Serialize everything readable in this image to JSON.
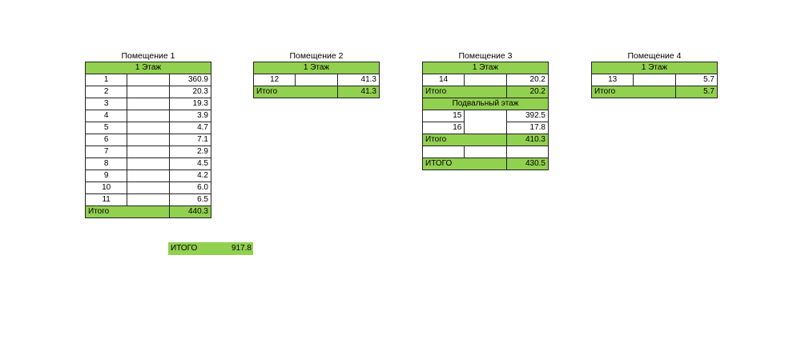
{
  "rooms": [
    {
      "title": "Помещение 1",
      "floor": "1 Этаж",
      "rows": [
        [
          "1",
          "360.9"
        ],
        [
          "2",
          "20.3"
        ],
        [
          "3",
          "19.3"
        ],
        [
          "4",
          "3.9"
        ],
        [
          "5",
          "4.7"
        ],
        [
          "6",
          "7.1"
        ],
        [
          "7",
          "2.9"
        ],
        [
          "8",
          "4.5"
        ],
        [
          "9",
          "4.2"
        ],
        [
          "10",
          "6.0"
        ],
        [
          "11",
          "6.5"
        ]
      ],
      "total_label": "Итого",
      "total": "440.3"
    },
    {
      "title": "Помещение 2",
      "floor": "1 Этаж",
      "rows": [
        [
          "12",
          "41.3"
        ]
      ],
      "total_label": "Итого",
      "total": "41.3"
    },
    {
      "title": "Помещение 3",
      "floor": "1 Этаж",
      "rows": [
        [
          "14",
          "20.2"
        ]
      ],
      "total_label": "Итого",
      "total": "20.2",
      "basement": {
        "floor": "Подвальный этаж",
        "rows": [
          [
            "15",
            "392.5"
          ],
          [
            "16",
            "17.8"
          ]
        ],
        "total_label": "Итого",
        "total": "410.3"
      },
      "grand_label": "ИТОГО",
      "grand": "430.5"
    },
    {
      "title": "Помещение 4",
      "floor": "1 Этаж",
      "rows": [
        [
          "13",
          "5.7"
        ]
      ],
      "total_label": "Итого",
      "total": "5.7"
    }
  ],
  "grand_total": {
    "label": "ИТОГО",
    "value": "917.8"
  },
  "colors": {
    "header_fill": "#92d050"
  }
}
